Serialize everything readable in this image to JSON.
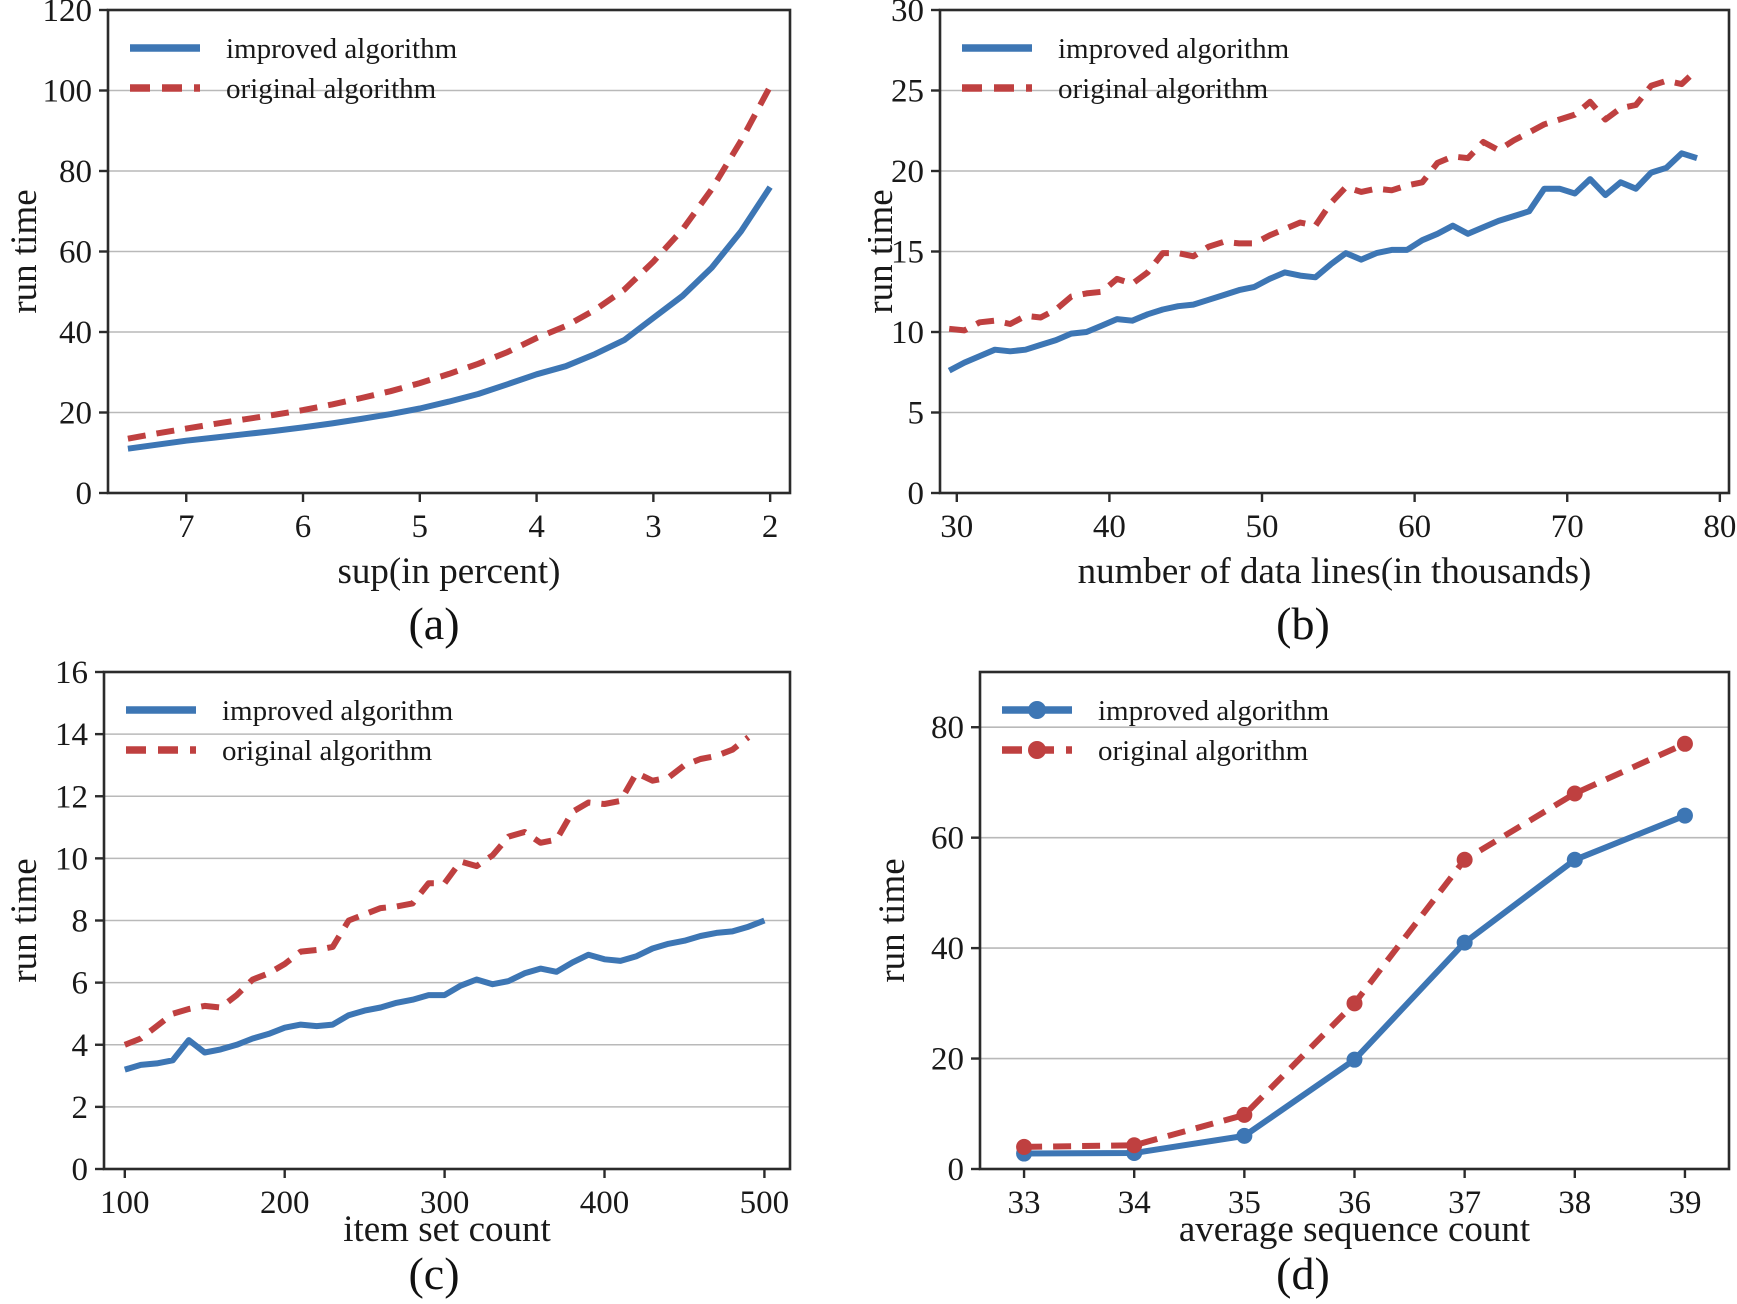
{
  "figure": {
    "captions": {
      "a": "(a)",
      "b": "(b)",
      "c": "(c)",
      "d": "(d)"
    },
    "legend_labels": [
      "improved algorithm",
      "original algorithm"
    ],
    "colors": {
      "improved": "#3d76b4",
      "original": "#bf4040",
      "grid": "#b9b9b9",
      "spine": "#2b2b2b",
      "text": "#191919"
    }
  },
  "chart_data": [
    {
      "type": "line",
      "panel_label": "(a)",
      "xlabel": "sup(in percent)",
      "ylabel": "run time",
      "x_reversed": true,
      "xlim": [
        7.67,
        1.83
      ],
      "xticks": [
        7,
        6,
        5,
        4,
        3,
        2
      ],
      "ylim": [
        0,
        120
      ],
      "yticks": [
        0,
        20,
        40,
        60,
        80,
        100,
        120
      ],
      "grid": "horizontal",
      "legend_position": "top-left",
      "series": [
        {
          "name": "improved algorithm",
          "color_key": "improved",
          "style": "solid",
          "markers": false,
          "x": [
            7.5,
            7.25,
            7.0,
            6.75,
            6.5,
            6.25,
            6.0,
            5.75,
            5.5,
            5.25,
            5.0,
            4.75,
            4.5,
            4.25,
            4.0,
            3.75,
            3.5,
            3.25,
            3.0,
            2.75,
            2.5,
            2.25,
            2.0
          ],
          "y": [
            11,
            12,
            13,
            13.8,
            14.6,
            15.4,
            16.3,
            17.3,
            18.4,
            19.6,
            21,
            22.7,
            24.6,
            27,
            29.5,
            31.5,
            34.5,
            38,
            43.5,
            49,
            56,
            65,
            76
          ]
        },
        {
          "name": "original algorithm",
          "color_key": "original",
          "style": "dashed",
          "markers": false,
          "x": [
            7.5,
            7.25,
            7.0,
            6.75,
            6.5,
            6.25,
            6.0,
            5.75,
            5.5,
            5.25,
            5.0,
            4.75,
            4.5,
            4.25,
            4.0,
            3.75,
            3.5,
            3.25,
            3.0,
            2.75,
            2.5,
            2.25,
            2.0
          ],
          "y": [
            13.5,
            14.8,
            16,
            17.2,
            18.3,
            19.4,
            20.6,
            22,
            23.6,
            25.3,
            27.3,
            29.6,
            32.1,
            35,
            38.5,
            41.5,
            45.5,
            50.5,
            57.5,
            65.5,
            75.5,
            87.5,
            101
          ]
        }
      ]
    },
    {
      "type": "line",
      "panel_label": "(b)",
      "xlabel": "number of data lines(in thousands)",
      "ylabel": "run time",
      "x_reversed": false,
      "xlim": [
        28.9,
        80.6
      ],
      "xticks": [
        30,
        40,
        50,
        60,
        70,
        80
      ],
      "ylim": [
        0,
        30
      ],
      "yticks": [
        0,
        5,
        10,
        15,
        20,
        25,
        30
      ],
      "grid": "horizontal",
      "legend_position": "top-left",
      "series": [
        {
          "name": "improved algorithm",
          "color_key": "improved",
          "style": "solid",
          "markers": false,
          "x": [
            29.5,
            30.5,
            31.5,
            32.5,
            33.5,
            34.5,
            35.5,
            36.5,
            37.5,
            38.5,
            39.5,
            40.5,
            41.5,
            42.5,
            43.5,
            44.5,
            45.5,
            46.5,
            47.5,
            48.5,
            49.5,
            50.5,
            51.5,
            52.5,
            53.5,
            54.5,
            55.5,
            56.5,
            57.5,
            58.5,
            59.5,
            60.5,
            61.5,
            62.5,
            63.5,
            64.5,
            65.5,
            66.5,
            67.5,
            68.5,
            69.5,
            70.5,
            71.5,
            72.5,
            73.5,
            74.5,
            75.5,
            76.5,
            77.5,
            78.5
          ],
          "y": [
            7.6,
            8.1,
            8.5,
            8.9,
            8.8,
            8.9,
            9.2,
            9.5,
            9.9,
            10.0,
            10.4,
            10.8,
            10.7,
            11.1,
            11.4,
            11.6,
            11.7,
            12.0,
            12.3,
            12.6,
            12.8,
            13.3,
            13.7,
            13.5,
            13.4,
            14.2,
            14.9,
            14.5,
            14.9,
            15.1,
            15.1,
            15.7,
            16.1,
            16.6,
            16.1,
            16.5,
            16.9,
            17.2,
            17.5,
            18.9,
            18.9,
            18.6,
            19.5,
            18.5,
            19.3,
            18.9,
            19.9,
            20.2,
            21.1,
            20.8
          ]
        },
        {
          "name": "original algorithm",
          "color_key": "original",
          "style": "dashed",
          "markers": false,
          "x": [
            29.5,
            30.5,
            31.5,
            32.5,
            33.5,
            34.5,
            35.5,
            36.5,
            37.5,
            38.5,
            39.5,
            40.5,
            41.5,
            42.5,
            43.5,
            44.5,
            45.5,
            46.5,
            47.5,
            48.5,
            49.5,
            50.5,
            51.5,
            52.5,
            53.5,
            54.5,
            55.5,
            56.5,
            57.5,
            58.5,
            59.5,
            60.5,
            61.5,
            62.5,
            63.5,
            64.5,
            65.5,
            66.5,
            67.5,
            68.5,
            69.5,
            70.5,
            71.5,
            72.5,
            73.5,
            74.5,
            75.5,
            76.5,
            77.5,
            78.5
          ],
          "y": [
            10.2,
            10.1,
            10.6,
            10.7,
            10.5,
            11.0,
            10.9,
            11.4,
            12.2,
            12.4,
            12.5,
            13.3,
            13.0,
            13.7,
            14.9,
            14.9,
            14.7,
            15.3,
            15.6,
            15.5,
            15.5,
            16.0,
            16.4,
            16.8,
            16.6,
            18.0,
            19.0,
            18.7,
            18.9,
            18.8,
            19.1,
            19.3,
            20.5,
            20.9,
            20.8,
            21.8,
            21.3,
            21.9,
            22.4,
            22.9,
            23.2,
            23.5,
            24.3,
            23.2,
            23.9,
            24.1,
            25.3,
            25.6,
            25.4,
            26.3
          ]
        }
      ]
    },
    {
      "type": "line",
      "panel_label": "(c)",
      "xlabel": "item set count",
      "ylabel": "run time",
      "x_reversed": false,
      "xlim": [
        87,
        516
      ],
      "xticks": [
        100,
        200,
        300,
        400,
        500
      ],
      "ylim": [
        0,
        16
      ],
      "yticks": [
        0,
        2,
        4,
        6,
        8,
        10,
        12,
        14,
        16
      ],
      "grid": "horizontal",
      "legend_position": "top-left",
      "series": [
        {
          "name": "improved algorithm",
          "color_key": "improved",
          "style": "solid",
          "markers": false,
          "x": [
            100,
            110,
            120,
            130,
            140,
            150,
            160,
            170,
            180,
            190,
            200,
            210,
            220,
            230,
            240,
            250,
            260,
            270,
            280,
            290,
            300,
            310,
            320,
            330,
            340,
            350,
            360,
            370,
            380,
            390,
            400,
            410,
            420,
            430,
            440,
            450,
            460,
            470,
            480,
            490,
            500
          ],
          "y": [
            3.2,
            3.35,
            3.4,
            3.5,
            4.15,
            3.75,
            3.85,
            4.0,
            4.2,
            4.35,
            4.55,
            4.65,
            4.6,
            4.65,
            4.95,
            5.1,
            5.2,
            5.35,
            5.45,
            5.6,
            5.6,
            5.9,
            6.1,
            5.95,
            6.05,
            6.3,
            6.45,
            6.35,
            6.65,
            6.9,
            6.75,
            6.7,
            6.85,
            7.1,
            7.25,
            7.35,
            7.5,
            7.6,
            7.65,
            7.8,
            8.0
          ]
        },
        {
          "name": "original algorithm",
          "color_key": "original",
          "style": "dashed",
          "markers": false,
          "x": [
            100,
            110,
            120,
            130,
            140,
            150,
            160,
            170,
            180,
            190,
            200,
            210,
            220,
            230,
            240,
            250,
            260,
            270,
            280,
            290,
            300,
            310,
            320,
            330,
            340,
            350,
            360,
            370,
            380,
            390,
            400,
            410,
            420,
            430,
            440,
            450,
            460,
            470,
            480,
            490
          ],
          "y": [
            4.0,
            4.2,
            4.6,
            5.0,
            5.15,
            5.25,
            5.2,
            5.6,
            6.1,
            6.3,
            6.6,
            7.0,
            7.05,
            7.15,
            8.0,
            8.2,
            8.4,
            8.45,
            8.55,
            9.2,
            9.2,
            9.9,
            9.75,
            10.1,
            10.7,
            10.85,
            10.5,
            10.6,
            11.5,
            11.8,
            11.75,
            11.85,
            12.75,
            12.5,
            12.6,
            13.0,
            13.2,
            13.3,
            13.5,
            13.9
          ]
        }
      ]
    },
    {
      "type": "line",
      "panel_label": "(d)",
      "xlabel": "average sequence count",
      "ylabel": "run time",
      "x_reversed": false,
      "xlim": [
        32.6,
        39.4
      ],
      "xticks": [
        33,
        34,
        35,
        36,
        37,
        38,
        39
      ],
      "ylim": [
        0,
        90
      ],
      "yticks": [
        0,
        20,
        40,
        60,
        80
      ],
      "grid": "horizontal",
      "legend_position": "top-left",
      "series": [
        {
          "name": "improved algorithm",
          "color_key": "improved",
          "style": "solid",
          "markers": true,
          "x": [
            33,
            34,
            35,
            36,
            37,
            38,
            39
          ],
          "y": [
            2.8,
            2.9,
            6.0,
            19.8,
            41,
            56,
            64
          ]
        },
        {
          "name": "original algorithm",
          "color_key": "original",
          "style": "dashed",
          "markers": true,
          "x": [
            33,
            34,
            35,
            36,
            37,
            38,
            39
          ],
          "y": [
            4.0,
            4.3,
            9.8,
            30,
            56,
            68,
            77
          ]
        }
      ]
    }
  ]
}
